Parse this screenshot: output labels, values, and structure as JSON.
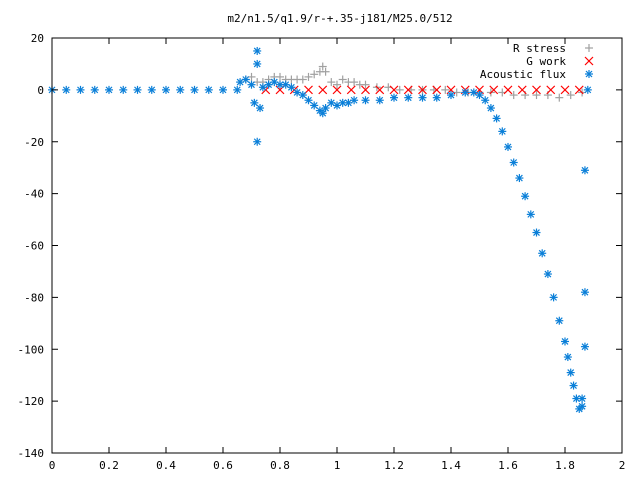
{
  "chart_data": {
    "type": "scatter",
    "title": "m2/n1.5/q1.9/r-+.35-j181/M25.0/512",
    "xlabel": "",
    "ylabel": "",
    "xlim": [
      0,
      2
    ],
    "ylim": [
      -140,
      20
    ],
    "xticks": [
      "0",
      "0.2",
      "0.4",
      "0.6",
      "0.8",
      "1",
      "1.2",
      "1.4",
      "1.6",
      "1.8",
      "2"
    ],
    "yticks": [
      "20",
      "0",
      "-20",
      "-40",
      "-60",
      "-80",
      "-100",
      "-120",
      "-140"
    ],
    "grid": false,
    "legend_position": "top-right",
    "series": [
      {
        "name": "R stress",
        "marker": "plus",
        "color": "#a0a0a0",
        "x": [
          0.68,
          0.7,
          0.72,
          0.74,
          0.76,
          0.78,
          0.8,
          0.82,
          0.84,
          0.86,
          0.88,
          0.9,
          0.92,
          0.94,
          0.95,
          0.96,
          0.98,
          1.0,
          1.02,
          1.04,
          1.06,
          1.08,
          1.1,
          1.14,
          1.18,
          1.22,
          1.26,
          1.3,
          1.34,
          1.38,
          1.42,
          1.46,
          1.5,
          1.54,
          1.58,
          1.62,
          1.66,
          1.7,
          1.74,
          1.78,
          1.82,
          1.86
        ],
        "y": [
          4,
          5,
          3,
          3,
          4,
          5,
          5,
          4,
          4,
          4,
          4,
          5,
          6,
          7,
          9,
          7,
          3,
          2,
          4,
          3,
          3,
          2,
          2,
          1,
          1,
          0,
          0,
          0,
          0,
          0,
          -1,
          -1,
          -1,
          -1,
          -1,
          -2,
          -2,
          -2,
          -2,
          -3,
          -2,
          -1
        ]
      },
      {
        "name": "G work",
        "marker": "cross",
        "color": "#ff0000",
        "x": [
          0.75,
          0.8,
          0.85,
          0.9,
          0.95,
          1.0,
          1.05,
          1.1,
          1.15,
          1.2,
          1.25,
          1.3,
          1.35,
          1.4,
          1.45,
          1.5,
          1.55,
          1.6,
          1.65,
          1.7,
          1.75,
          1.8,
          1.85
        ],
        "y": [
          0,
          0,
          0,
          0,
          0,
          0,
          0,
          0,
          0,
          0,
          0,
          0,
          0,
          0,
          0,
          0,
          0,
          0,
          0,
          0,
          0,
          0,
          0
        ]
      },
      {
        "name": "Acoustic flux",
        "marker": "star",
        "color": "#0a7fd8",
        "x": [
          0.0,
          0.05,
          0.1,
          0.15,
          0.2,
          0.25,
          0.3,
          0.35,
          0.4,
          0.45,
          0.5,
          0.55,
          0.6,
          0.65,
          0.66,
          0.68,
          0.7,
          0.71,
          0.72,
          0.72,
          0.72,
          0.73,
          0.74,
          0.76,
          0.78,
          0.8,
          0.82,
          0.84,
          0.86,
          0.88,
          0.9,
          0.92,
          0.94,
          0.95,
          0.96,
          0.98,
          1.0,
          1.02,
          1.04,
          1.06,
          1.1,
          1.15,
          1.2,
          1.25,
          1.3,
          1.35,
          1.4,
          1.45,
          1.48,
          1.5,
          1.52,
          1.54,
          1.56,
          1.58,
          1.6,
          1.62,
          1.64,
          1.66,
          1.68,
          1.7,
          1.72,
          1.74,
          1.76,
          1.78,
          1.8,
          1.81,
          1.82,
          1.83,
          1.84,
          1.85,
          1.86,
          1.86,
          1.87,
          1.87,
          1.87,
          1.88
        ],
        "y": [
          0,
          0,
          0,
          0,
          0,
          0,
          0,
          0,
          0,
          0,
          0,
          0,
          0,
          0,
          3,
          4,
          2,
          -5,
          15,
          10,
          -20,
          -7,
          1,
          2,
          3,
          2,
          2,
          1,
          -1,
          -2,
          -4,
          -6,
          -8,
          -9,
          -7,
          -5,
          -6,
          -5,
          -5,
          -4,
          -4,
          -4,
          -3,
          -3,
          -3,
          -3,
          -2,
          -1,
          -1,
          -2,
          -4,
          -7,
          -11,
          -16,
          -22,
          -28,
          -34,
          -41,
          -48,
          -55,
          -63,
          -71,
          -80,
          -89,
          -97,
          -103,
          -109,
          -114,
          -119,
          -123,
          -122,
          -119,
          -99,
          -78,
          -31,
          0
        ]
      }
    ]
  }
}
